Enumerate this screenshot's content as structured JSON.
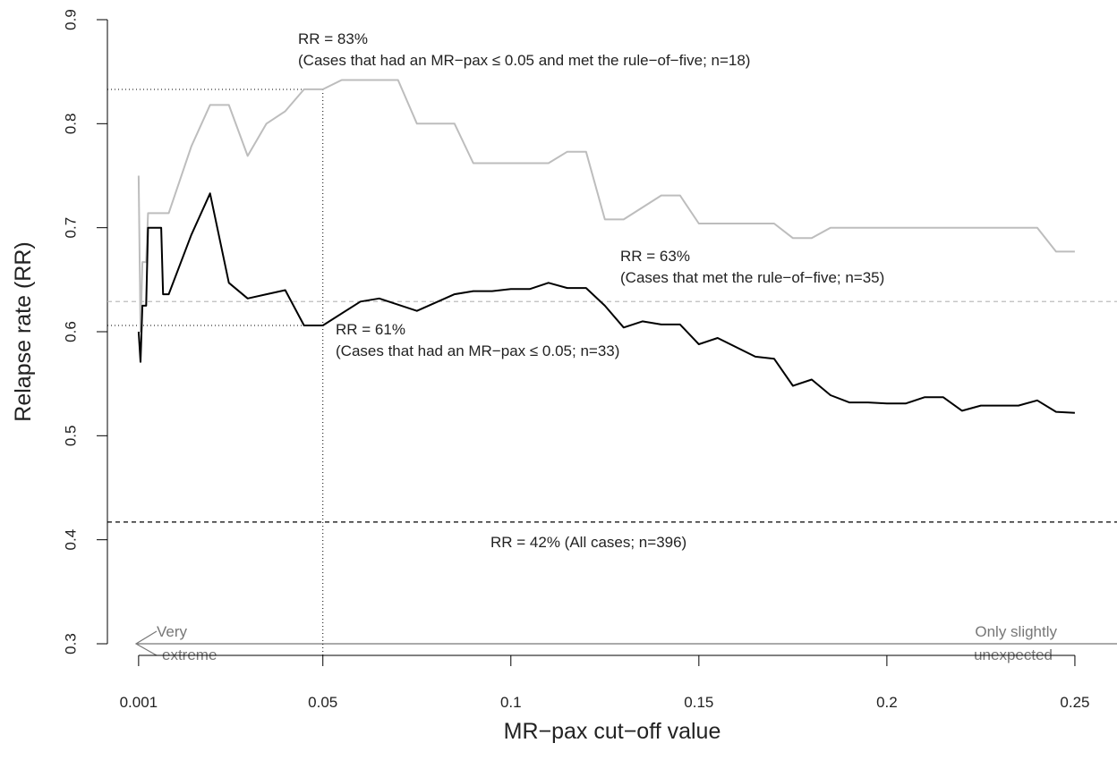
{
  "chart_data": {
    "type": "line",
    "xlabel": "MR−pax cut−off value",
    "ylabel": "Relapse rate (RR)",
    "xlim": [
      -0.0073,
      0.2612
    ],
    "ylim": [
      0.3,
      0.9
    ],
    "xticks": [
      0.001,
      0.05,
      0.1,
      0.15,
      0.2,
      0.25
    ],
    "yticks": [
      0.3,
      0.4,
      0.5,
      0.6,
      0.7,
      0.8,
      0.9
    ],
    "series": [
      {
        "color": "#bdbdbd",
        "x": [
          0.001,
          0.0015,
          0.002,
          0.003,
          0.0035,
          0.009,
          0.015,
          0.02,
          0.025,
          0.03,
          0.035,
          0.04,
          0.045,
          0.05,
          0.055,
          0.07,
          0.075,
          0.085,
          0.09,
          0.11,
          0.115,
          0.12,
          0.125,
          0.13,
          0.14,
          0.145,
          0.15,
          0.17,
          0.175,
          0.18,
          0.185,
          0.24,
          0.245,
          0.25
        ],
        "values": [
          0.75,
          0.6,
          0.667,
          0.667,
          0.714,
          0.714,
          0.778,
          0.818,
          0.818,
          0.769,
          0.8,
          0.812,
          0.833,
          0.833,
          0.842,
          0.842,
          0.8,
          0.8,
          0.762,
          0.762,
          0.773,
          0.773,
          0.708,
          0.708,
          0.731,
          0.731,
          0.704,
          0.704,
          0.69,
          0.69,
          0.7,
          0.7,
          0.677,
          0.677
        ]
      },
      {
        "color": "#000000",
        "x": [
          0.001,
          0.0015,
          0.002,
          0.003,
          0.0035,
          0.007,
          0.0075,
          0.009,
          0.015,
          0.02,
          0.025,
          0.03,
          0.035,
          0.04,
          0.045,
          0.05,
          0.06,
          0.065,
          0.075,
          0.085,
          0.09,
          0.095,
          0.1,
          0.105,
          0.11,
          0.115,
          0.12,
          0.125,
          0.13,
          0.135,
          0.14,
          0.145,
          0.15,
          0.155,
          0.165,
          0.17,
          0.175,
          0.18,
          0.185,
          0.19,
          0.195,
          0.2,
          0.205,
          0.21,
          0.215,
          0.22,
          0.225,
          0.235,
          0.24,
          0.245,
          0.25
        ],
        "values": [
          0.6,
          0.571,
          0.625,
          0.625,
          0.7,
          0.7,
          0.636,
          0.636,
          0.693,
          0.733,
          0.647,
          0.632,
          0.636,
          0.64,
          0.606,
          0.606,
          0.629,
          0.632,
          0.62,
          0.636,
          0.639,
          0.639,
          0.641,
          0.641,
          0.647,
          0.642,
          0.642,
          0.625,
          0.604,
          0.61,
          0.607,
          0.607,
          0.588,
          0.594,
          0.576,
          0.574,
          0.548,
          0.554,
          0.539,
          0.532,
          0.532,
          0.531,
          0.531,
          0.537,
          0.537,
          0.524,
          0.529,
          0.529,
          0.534,
          0.523,
          0.522
        ]
      }
    ],
    "reference_lines": [
      {
        "y": 0.417,
        "color": "#000000"
      },
      {
        "y": 0.629,
        "color": "#bdbdbd"
      }
    ],
    "guides": {
      "x": 0.05,
      "y": [
        0.833,
        0.606
      ]
    },
    "annotations": [
      "RR = 83%",
      "(Cases that had an MR−pax ≤ 0.05 and met the rule−of−five; n=18)",
      "RR = 63%",
      "(Cases that met the rule−of−five; n=35)",
      "RR = 61%",
      "(Cases that had an MR−pax ≤ 0.05; n=33)",
      "RR = 42% (All cases; n=396)"
    ],
    "direction_labels": [
      "Very",
      "extreme",
      "Only slightly",
      "unexpected"
    ]
  }
}
